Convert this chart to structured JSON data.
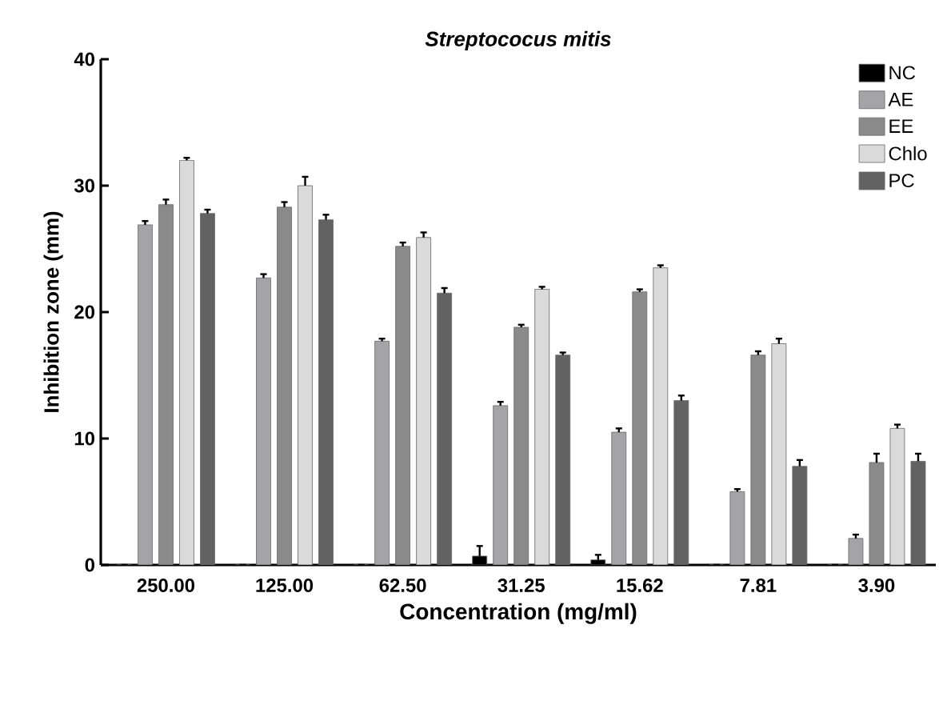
{
  "chart_data": {
    "type": "bar",
    "title": "Streptococus mitis",
    "xlabel": "Concentration (mg/ml)",
    "ylabel": "Inhibition zone (mm)",
    "categories": [
      "250.00",
      "125.00",
      "62.50",
      "31.25",
      "15.62",
      "7.81",
      "3.90"
    ],
    "ylim": [
      0,
      40
    ],
    "yticks": [
      0,
      10,
      20,
      30,
      40
    ],
    "legend": "top right",
    "grid": false,
    "series": [
      {
        "name": "NC",
        "color": "#000000",
        "values": [
          0,
          0,
          0,
          0.7,
          0.4,
          0,
          0
        ],
        "errors": [
          null,
          null,
          null,
          0.8,
          0.4,
          null,
          null
        ]
      },
      {
        "name": "AE",
        "color": "#a3a3a8",
        "values": [
          26.9,
          22.7,
          17.7,
          12.6,
          10.5,
          5.8,
          2.1
        ],
        "errors": [
          0.3,
          0.3,
          0.2,
          0.3,
          0.3,
          0.2,
          0.3
        ]
      },
      {
        "name": "EE",
        "color": "#8a8a8a",
        "values": [
          28.5,
          28.3,
          25.2,
          18.8,
          21.6,
          16.6,
          8.1
        ],
        "errors": [
          0.4,
          0.4,
          0.3,
          0.2,
          0.2,
          0.3,
          0.7
        ]
      },
      {
        "name": "Chlo",
        "color": "#dadada",
        "values": [
          32.0,
          30.0,
          25.9,
          21.8,
          23.5,
          17.5,
          10.8
        ],
        "errors": [
          0.2,
          0.7,
          0.4,
          0.2,
          0.2,
          0.4,
          0.3
        ]
      },
      {
        "name": "PC",
        "color": "#626262",
        "values": [
          27.8,
          27.3,
          21.5,
          16.6,
          13.0,
          7.8,
          8.2
        ],
        "errors": [
          0.3,
          0.4,
          0.4,
          0.2,
          0.4,
          0.5,
          0.6
        ]
      }
    ]
  }
}
